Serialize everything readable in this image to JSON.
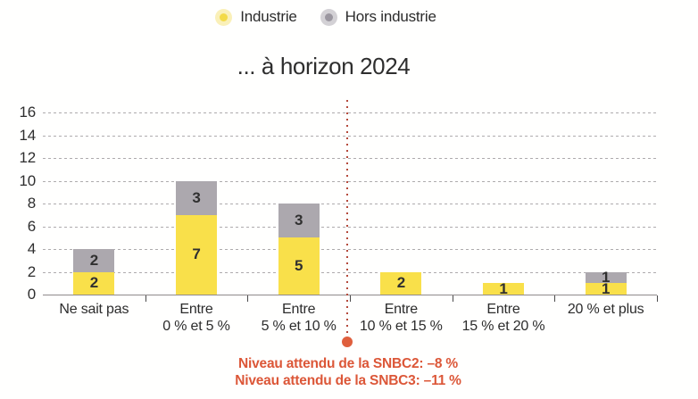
{
  "title": "... à horizon 2024",
  "legend": {
    "items": [
      {
        "label": "Industrie",
        "color": "#F3DA48",
        "halo": "#FAF0B8"
      },
      {
        "label": "Hors industrie",
        "color": "#9B97A0",
        "halo": "#D3D1D5"
      }
    ]
  },
  "chart_data": {
    "type": "bar",
    "stacked": true,
    "title": "... à horizon 2024",
    "categories": [
      "Ne sait pas",
      "Entre\n0 % et 5 %",
      "Entre\n5 % et 10 %",
      "Entre\n10 % et 15 %",
      "Entre\n15 % et 20 %",
      "20 % et plus"
    ],
    "series": [
      {
        "name": "Industrie",
        "key": "industrie",
        "color": "#F9E04A",
        "values": [
          2,
          7,
          5,
          2,
          1,
          1
        ]
      },
      {
        "name": "Hors industrie",
        "key": "hors-industrie",
        "color": "#ACA8AE",
        "values": [
          2,
          3,
          3,
          0,
          0,
          1
        ]
      }
    ],
    "xlabel": "",
    "ylabel": "",
    "ylim": [
      0,
      16
    ],
    "yticks": [
      0,
      2,
      4,
      6,
      8,
      10,
      12,
      14,
      16
    ],
    "grid": "horizontal-dashed",
    "legend_position": "top"
  },
  "annotation": {
    "line1": "Niveau attendu de la SNBC2: –8 %",
    "line2": "Niveau attendu de la SNBC3: –11 %",
    "text_color": "#DC5738",
    "dotted_line_color": "#B44A3C",
    "marker_color": "#DF5F3D"
  }
}
